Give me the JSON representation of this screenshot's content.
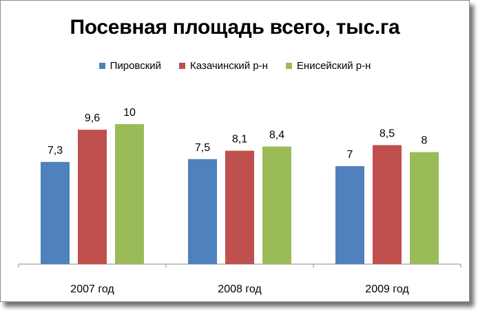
{
  "chart_data": {
    "type": "bar",
    "title": "Посевная площадь всего, тыс.га",
    "categories": [
      "2007 год",
      "2008 год",
      "2009 год"
    ],
    "series": [
      {
        "name": "Пировский",
        "color": "#4f81bd",
        "values": [
          7.3,
          7.5,
          7
        ],
        "labels": [
          "7,3",
          "7,5",
          "7"
        ]
      },
      {
        "name": "Казачинский р-н",
        "color": "#c0504d",
        "values": [
          9.6,
          8.1,
          8.5
        ],
        "labels": [
          "9,6",
          "8,1",
          "8,5"
        ]
      },
      {
        "name": "Енисейский р-н",
        "color": "#9bbb59",
        "values": [
          10,
          8.4,
          8
        ],
        "labels": [
          "10",
          "8,4",
          "8"
        ]
      }
    ],
    "ylim": [
      0,
      10
    ],
    "legend_position": "top",
    "grid": false
  }
}
